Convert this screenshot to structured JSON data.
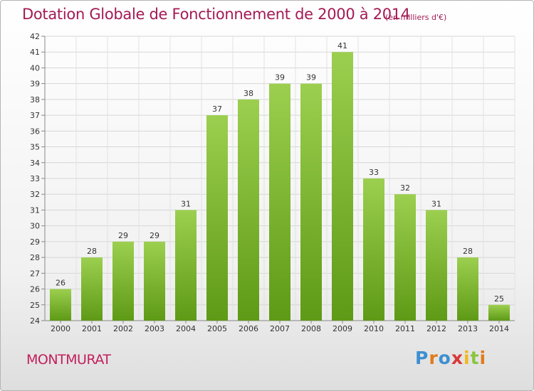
{
  "header": {
    "title": "Dotation Globale de Fonctionnement de 2000 à 2014",
    "subtitle": "(en milliers d'€)"
  },
  "footer": {
    "commune": "MONTMURAT",
    "logo_letters": [
      "P",
      "r",
      "o",
      "x",
      "i",
      "t",
      "i"
    ],
    "logo_colors": [
      "#3d8fd1",
      "#e07b1c",
      "#3d8fd1",
      "#d93838",
      "#f0b81a",
      "#8bc43f",
      "#e07b1c"
    ]
  },
  "colors": {
    "bar_top": "#9ccf4f",
    "bar_bottom": "#5e9a16",
    "title": "#a31a55",
    "commune": "#c21f5b"
  },
  "chart_data": {
    "type": "bar",
    "title": "Dotation Globale de Fonctionnement de 2000 à 2014",
    "subtitle": "(en milliers d'€)",
    "xlabel": "",
    "ylabel": "",
    "ylim": [
      24,
      42
    ],
    "yticks": [
      24,
      25,
      26,
      27,
      28,
      29,
      30,
      31,
      32,
      33,
      34,
      35,
      36,
      37,
      38,
      39,
      40,
      41,
      42
    ],
    "grid": true,
    "categories": [
      "2000",
      "2001",
      "2002",
      "2003",
      "2004",
      "2005",
      "2006",
      "2007",
      "2008",
      "2009",
      "2010",
      "2011",
      "2012",
      "2013",
      "2014"
    ],
    "values": [
      26,
      28,
      29,
      29,
      31,
      37,
      38,
      39,
      39,
      41,
      33,
      32,
      31,
      28,
      25
    ]
  }
}
